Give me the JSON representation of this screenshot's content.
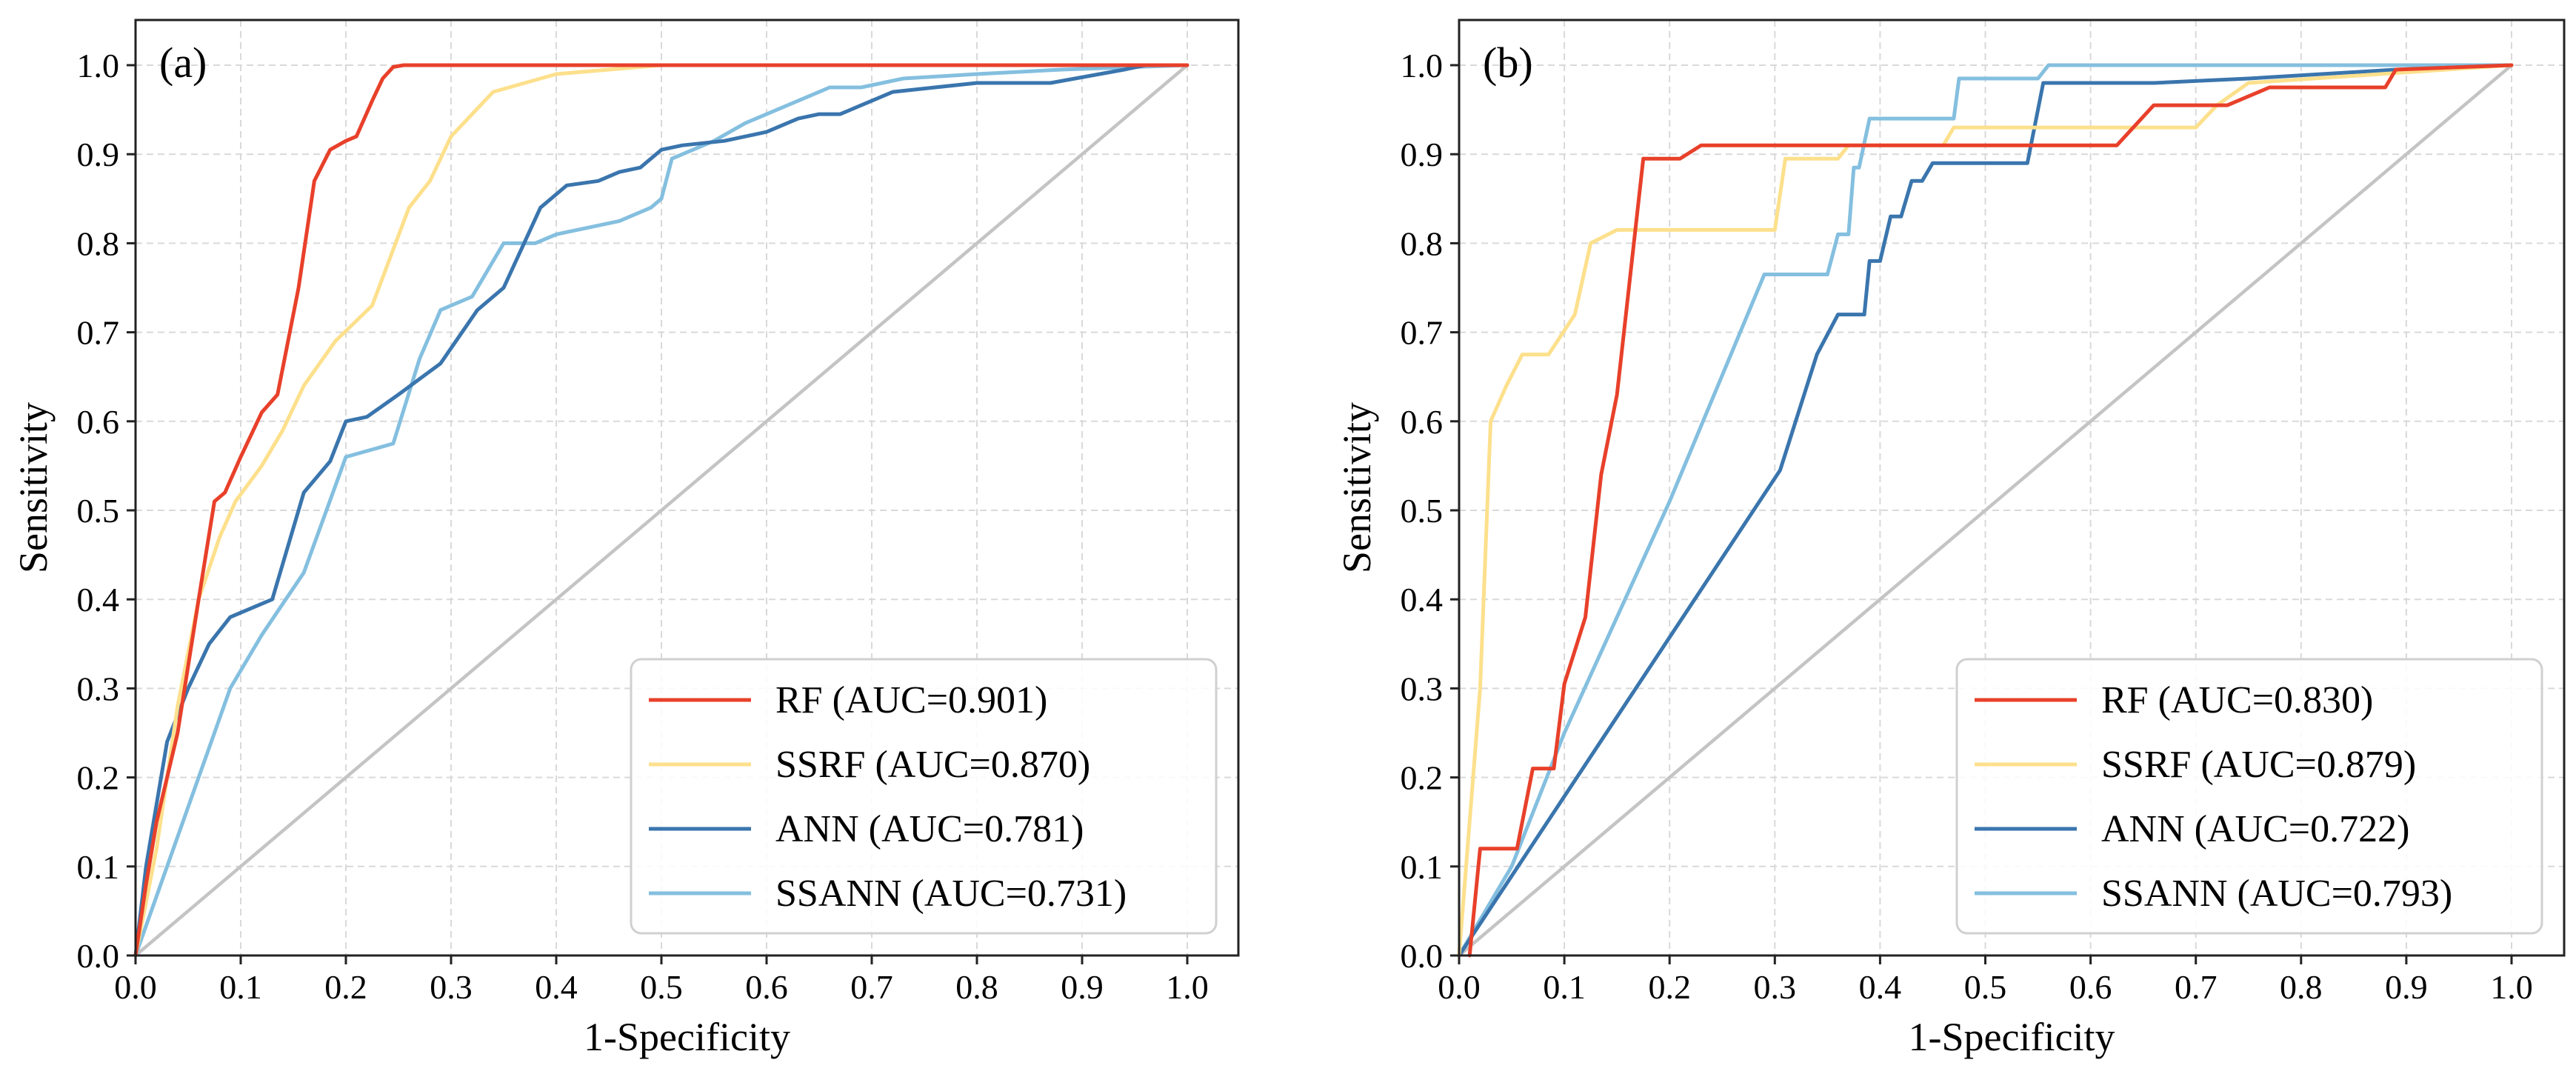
{
  "chart_data": [
    {
      "type": "line",
      "panel_label": "(a)",
      "xlabel": "1-Specificity",
      "ylabel": "Sensitivity",
      "xlim": [
        0,
        1
      ],
      "ylim": [
        0,
        1
      ],
      "xticks": [
        "0.0",
        "0.1",
        "0.2",
        "0.3",
        "0.4",
        "0.5",
        "0.6",
        "0.7",
        "0.8",
        "0.9",
        "1.0"
      ],
      "yticks": [
        "0.0",
        "0.1",
        "0.2",
        "0.3",
        "0.4",
        "0.5",
        "0.6",
        "0.7",
        "0.8",
        "0.9",
        "1.0"
      ],
      "grid": true,
      "legend_position": "lower-right",
      "series": [
        {
          "name": "RF (AUC=0.901)",
          "color": "#e8402a",
          "x": [
            0,
            0.01,
            0.02,
            0.04,
            0.06,
            0.075,
            0.085,
            0.1,
            0.12,
            0.135,
            0.155,
            0.17,
            0.185,
            0.2,
            0.21,
            0.225,
            0.235,
            0.245,
            0.255,
            0.3,
            0.4,
            0.5,
            1.0
          ],
          "y": [
            0,
            0.08,
            0.15,
            0.25,
            0.4,
            0.51,
            0.52,
            0.56,
            0.61,
            0.63,
            0.75,
            0.87,
            0.905,
            0.915,
            0.92,
            0.96,
            0.985,
            0.998,
            1.0,
            1.0,
            1.0,
            1.0,
            1.0
          ]
        },
        {
          "name": "SSRF (AUC=0.870)",
          "color": "#fde08c",
          "x": [
            0,
            0.02,
            0.04,
            0.06,
            0.08,
            0.095,
            0.12,
            0.14,
            0.16,
            0.19,
            0.225,
            0.26,
            0.28,
            0.3,
            0.34,
            0.4,
            0.5,
            0.6,
            1.0
          ],
          "y": [
            0,
            0.12,
            0.28,
            0.4,
            0.47,
            0.51,
            0.55,
            0.59,
            0.64,
            0.69,
            0.73,
            0.84,
            0.87,
            0.92,
            0.97,
            0.99,
            1.0,
            1.0,
            1.0
          ]
        },
        {
          "name": "ANN (AUC=0.781)",
          "color": "#3a75ad",
          "x": [
            0,
            0.01,
            0.03,
            0.05,
            0.07,
            0.09,
            0.11,
            0.13,
            0.16,
            0.185,
            0.2,
            0.22,
            0.25,
            0.29,
            0.325,
            0.35,
            0.385,
            0.41,
            0.44,
            0.46,
            0.48,
            0.5,
            0.52,
            0.56,
            0.6,
            0.63,
            0.65,
            0.67,
            0.69,
            0.72,
            0.76,
            0.8,
            0.87,
            0.94,
            0.96,
            1.0
          ],
          "y": [
            0,
            0.1,
            0.24,
            0.3,
            0.35,
            0.38,
            0.39,
            0.4,
            0.52,
            0.555,
            0.6,
            0.605,
            0.63,
            0.665,
            0.725,
            0.75,
            0.84,
            0.865,
            0.87,
            0.88,
            0.885,
            0.905,
            0.91,
            0.915,
            0.925,
            0.94,
            0.945,
            0.945,
            0.955,
            0.97,
            0.975,
            0.98,
            0.98,
            0.995,
            1.0,
            1.0
          ]
        },
        {
          "name": "SSANN (AUC=0.731)",
          "color": "#84bfdf",
          "x": [
            0,
            0.03,
            0.06,
            0.09,
            0.12,
            0.16,
            0.2,
            0.245,
            0.27,
            0.29,
            0.32,
            0.35,
            0.38,
            0.4,
            0.44,
            0.46,
            0.49,
            0.5,
            0.51,
            0.55,
            0.58,
            0.61,
            0.64,
            0.66,
            0.69,
            0.73,
            0.8,
            0.88,
            1.0
          ],
          "y": [
            0,
            0.1,
            0.2,
            0.3,
            0.36,
            0.43,
            0.56,
            0.575,
            0.67,
            0.725,
            0.74,
            0.8,
            0.8,
            0.81,
            0.82,
            0.825,
            0.84,
            0.85,
            0.895,
            0.915,
            0.935,
            0.95,
            0.965,
            0.975,
            0.975,
            0.985,
            0.99,
            0.995,
            1.0
          ]
        }
      ],
      "reference_line": {
        "color": "#c4c4c4",
        "x": [
          0,
          1
        ],
        "y": [
          0,
          1
        ]
      }
    },
    {
      "type": "line",
      "panel_label": "(b)",
      "xlabel": "1-Specificity",
      "ylabel": "Sensitivity",
      "xlim": [
        0,
        1
      ],
      "ylim": [
        0,
        1
      ],
      "xticks": [
        "0.0",
        "0.1",
        "0.2",
        "0.3",
        "0.4",
        "0.5",
        "0.6",
        "0.7",
        "0.8",
        "0.9",
        "1.0"
      ],
      "yticks": [
        "0.0",
        "0.1",
        "0.2",
        "0.3",
        "0.4",
        "0.5",
        "0.6",
        "0.7",
        "0.8",
        "0.9",
        "1.0"
      ],
      "grid": true,
      "legend_position": "lower-right",
      "series": [
        {
          "name": "RF (AUC=0.830)",
          "color": "#e8402a",
          "x": [
            0.01,
            0.02,
            0.055,
            0.07,
            0.09,
            0.1,
            0.12,
            0.135,
            0.15,
            0.175,
            0.21,
            0.23,
            0.3,
            0.6,
            0.625,
            0.66,
            0.69,
            0.73,
            0.77,
            0.88,
            0.89,
            1.0
          ],
          "y": [
            0,
            0.12,
            0.12,
            0.21,
            0.21,
            0.305,
            0.38,
            0.54,
            0.63,
            0.895,
            0.895,
            0.91,
            0.91,
            0.91,
            0.91,
            0.955,
            0.955,
            0.955,
            0.975,
            0.975,
            0.995,
            1.0
          ]
        },
        {
          "name": "SSRF (AUC=0.879)",
          "color": "#fde08c",
          "x": [
            0,
            0.02,
            0.03,
            0.045,
            0.06,
            0.085,
            0.11,
            0.125,
            0.15,
            0.3,
            0.31,
            0.36,
            0.37,
            0.46,
            0.47,
            0.54,
            0.7,
            0.72,
            0.75,
            1.0
          ],
          "y": [
            0,
            0.3,
            0.6,
            0.64,
            0.675,
            0.675,
            0.72,
            0.8,
            0.815,
            0.815,
            0.895,
            0.895,
            0.91,
            0.91,
            0.93,
            0.93,
            0.93,
            0.955,
            0.98,
            1.0
          ]
        },
        {
          "name": "ANN (AUC=0.722)",
          "color": "#3a75ad",
          "x": [
            0,
            0.305,
            0.34,
            0.36,
            0.385,
            0.39,
            0.4,
            0.41,
            0.42,
            0.43,
            0.44,
            0.45,
            0.54,
            0.555,
            0.57,
            0.66,
            0.75,
            0.89,
            1.0
          ],
          "y": [
            0,
            0.545,
            0.675,
            0.72,
            0.72,
            0.78,
            0.78,
            0.83,
            0.83,
            0.87,
            0.87,
            0.89,
            0.89,
            0.98,
            0.98,
            0.98,
            0.985,
            0.995,
            1.0
          ]
        },
        {
          "name": "SSANN (AUC=0.793)",
          "color": "#84bfdf",
          "x": [
            0,
            0.05,
            0.1,
            0.2,
            0.29,
            0.35,
            0.36,
            0.37,
            0.375,
            0.38,
            0.39,
            0.47,
            0.475,
            0.55,
            0.56,
            1.0
          ],
          "y": [
            0,
            0.1,
            0.25,
            0.51,
            0.765,
            0.765,
            0.81,
            0.81,
            0.885,
            0.885,
            0.94,
            0.94,
            0.985,
            0.985,
            1.0,
            1.0
          ]
        }
      ],
      "reference_line": {
        "color": "#c4c4c4",
        "x": [
          0,
          1
        ],
        "y": [
          0,
          1
        ]
      }
    }
  ]
}
